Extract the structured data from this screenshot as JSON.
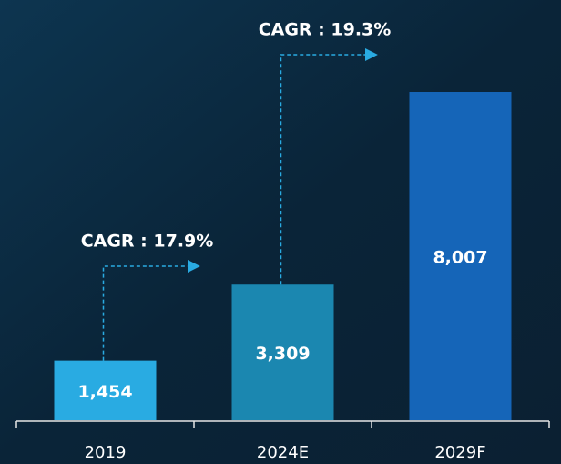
{
  "chart_data": {
    "type": "bar",
    "categories": [
      "2019",
      "2024E",
      "2029F"
    ],
    "values": [
      1454,
      3309,
      8007
    ],
    "value_labels": [
      "1,454",
      "3,309",
      "8,007"
    ],
    "colors": [
      "#29abe2",
      "#1b87b0",
      "#1565b8"
    ],
    "annotations": [
      {
        "text": "CAGR : 17.9%"
      },
      {
        "text": "CAGR : 19.3%"
      }
    ]
  }
}
